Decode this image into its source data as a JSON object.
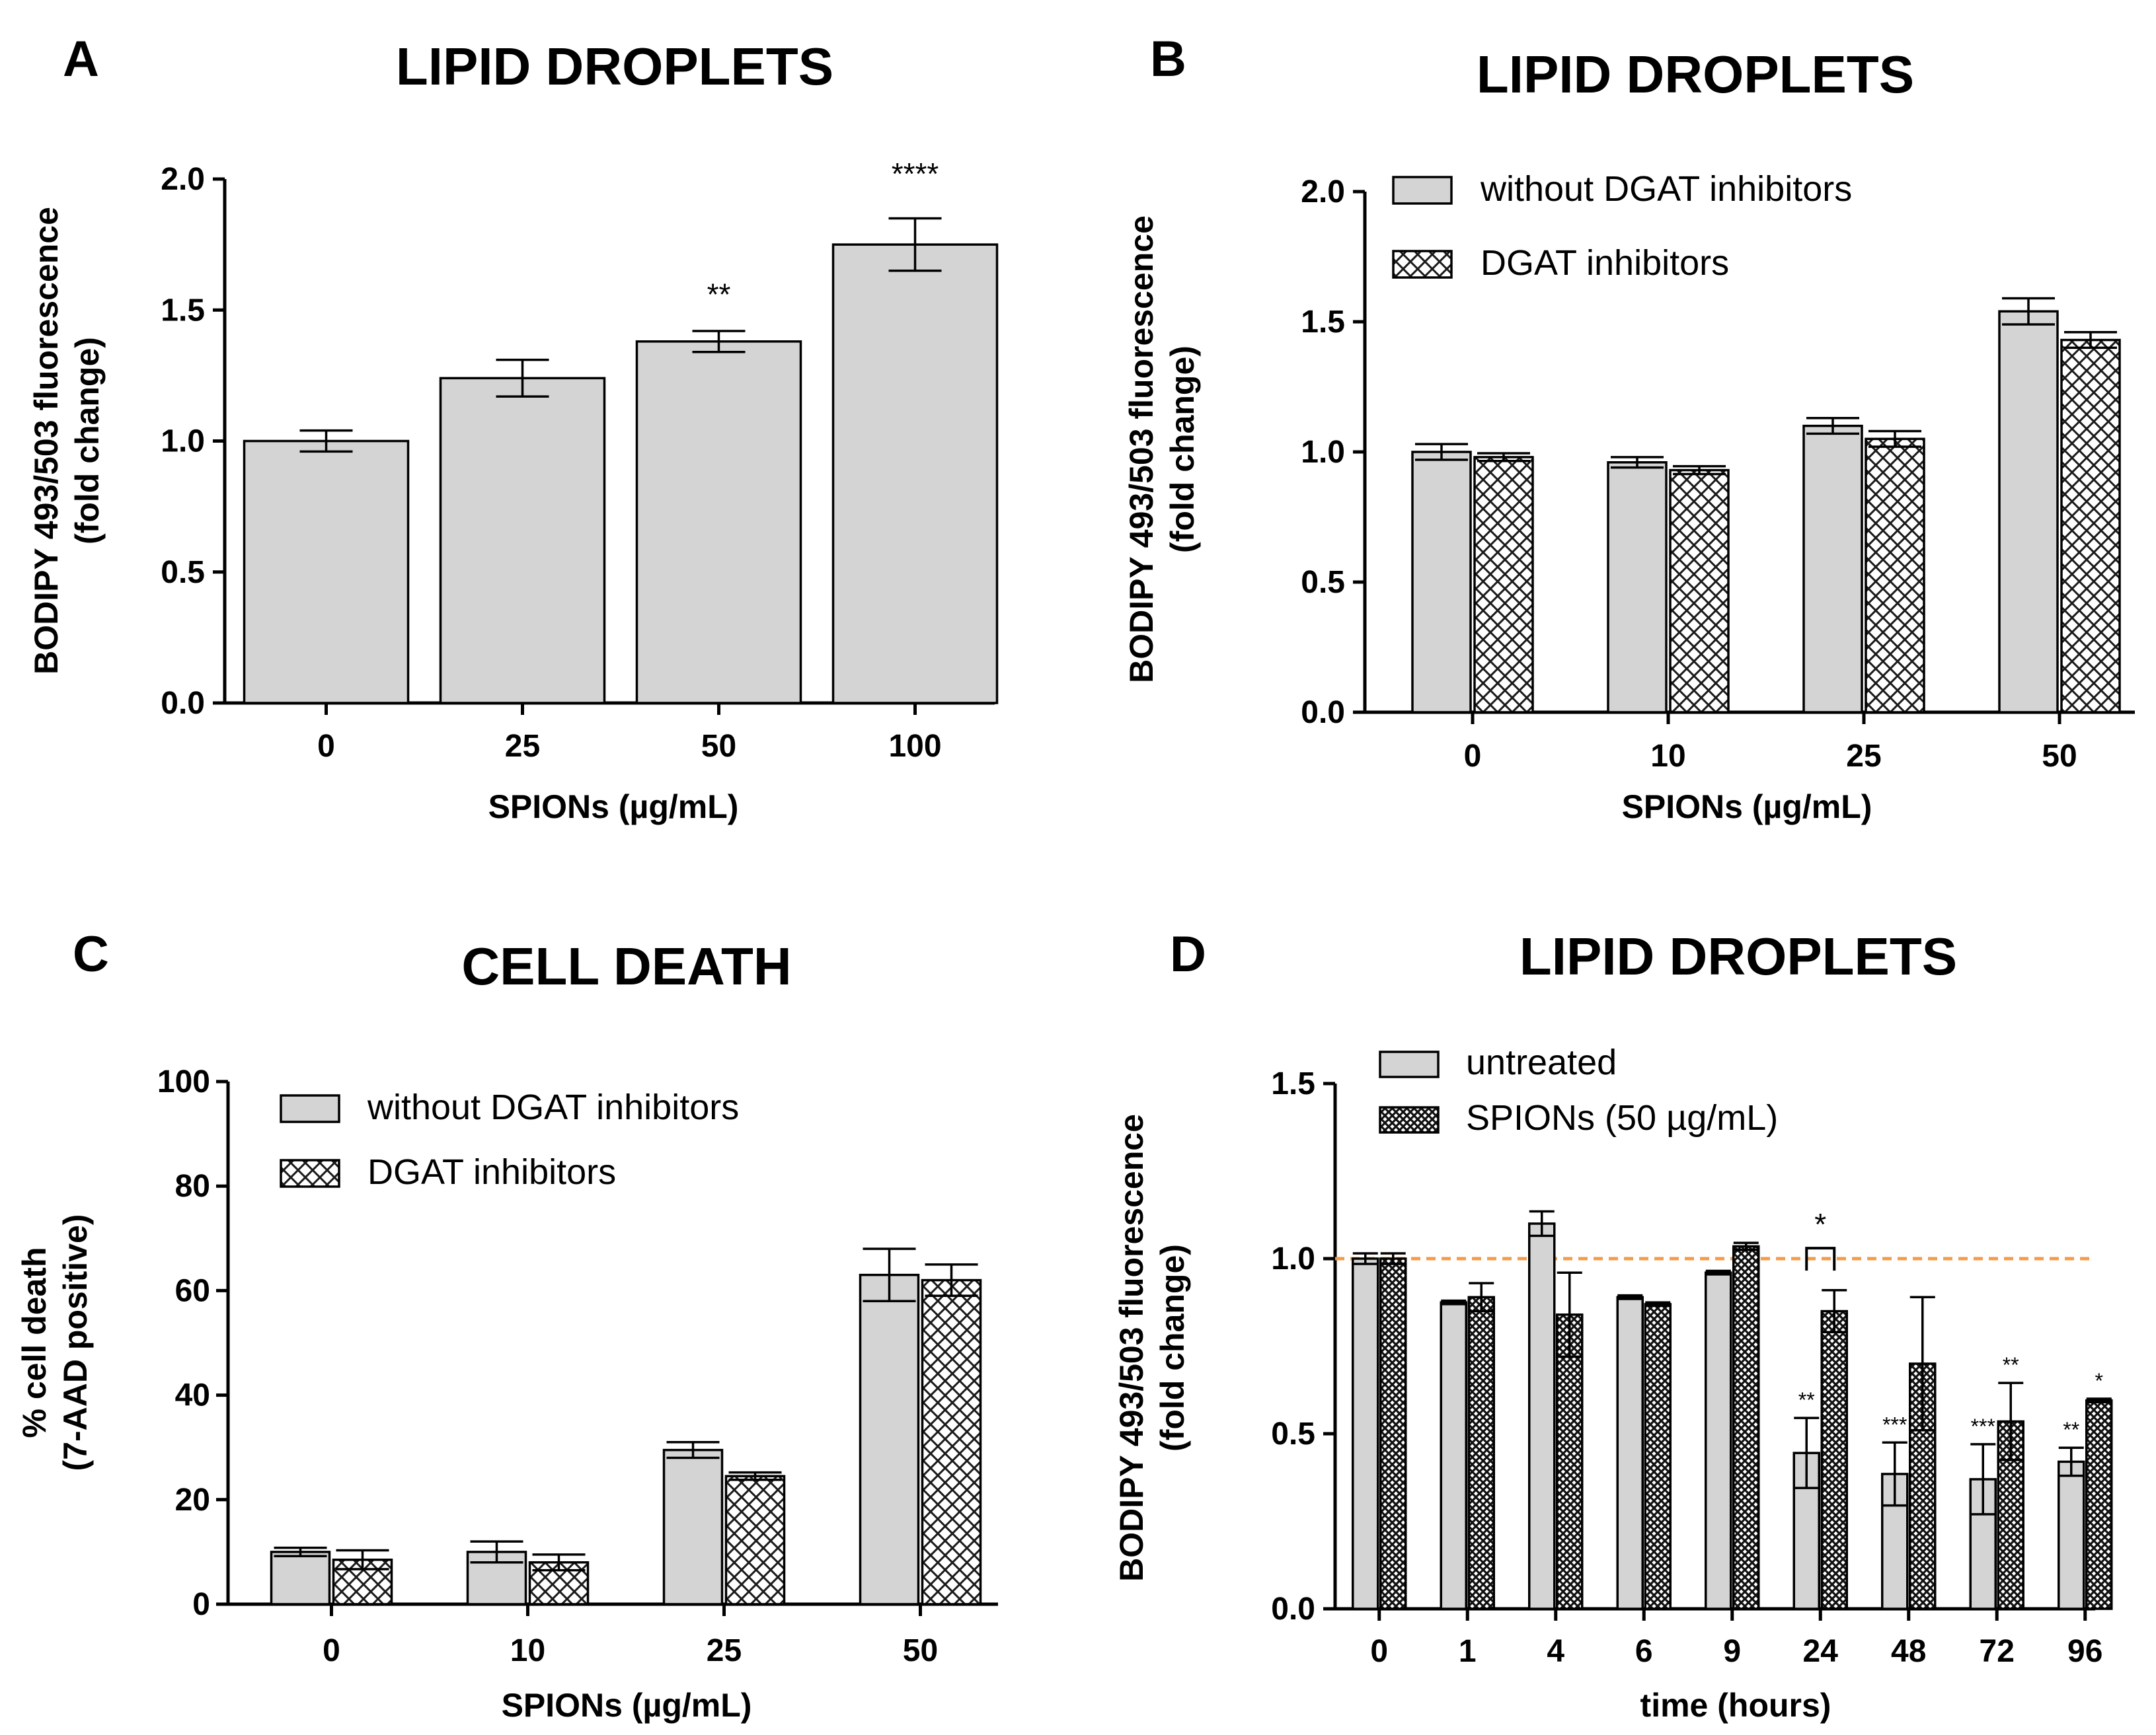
{
  "chart_data": [
    {
      "panel": "A",
      "type": "bar",
      "title": "LIPID DROPLETS",
      "xlabel": "SPIONs (µg/mL)",
      "ylabel": [
        "BODIPY 493/503 fluorescence",
        "(fold change)"
      ],
      "ylim": [
        0,
        2.0
      ],
      "yticks": [
        "0.0",
        "0.5",
        "1.0",
        "1.5",
        "2.0"
      ],
      "categories": [
        "0",
        "25",
        "50",
        "100"
      ],
      "series": [
        {
          "name": "",
          "pattern": "solid",
          "values": [
            1.0,
            1.24,
            1.38,
            1.75
          ],
          "errors": [
            0.04,
            0.07,
            0.04,
            0.1
          ]
        }
      ],
      "annotations": [
        {
          "category_index": 2,
          "text": "**",
          "y": 1.52
        },
        {
          "category_index": 3,
          "text": "****",
          "y": 1.98
        }
      ]
    },
    {
      "panel": "B",
      "type": "bar",
      "title": "LIPID DROPLETS",
      "xlabel": "SPIONs (µg/mL)",
      "ylabel": [
        "BODIPY 493/503 fluorescence",
        "(fold change)"
      ],
      "ylim": [
        0,
        2.0
      ],
      "yticks": [
        "0.0",
        "0.5",
        "1.0",
        "1.5",
        "2.0"
      ],
      "categories": [
        "0",
        "10",
        "25",
        "50"
      ],
      "legend_position": "top-left",
      "series": [
        {
          "name": "without DGAT inhibitors",
          "pattern": "solid",
          "values": [
            1.0,
            0.96,
            1.1,
            1.54
          ],
          "errors": [
            0.03,
            0.02,
            0.03,
            0.05
          ]
        },
        {
          "name": "DGAT inhibitors",
          "pattern": "crosshatch",
          "values": [
            0.98,
            0.93,
            1.05,
            1.43
          ],
          "errors": [
            0.015,
            0.015,
            0.03,
            0.03
          ]
        }
      ]
    },
    {
      "panel": "C",
      "type": "bar",
      "title": "CELL DEATH",
      "xlabel": "SPIONs (µg/mL)",
      "ylabel": [
        "% cell death",
        "(7-AAD positive)"
      ],
      "ylim": [
        0,
        100
      ],
      "yticks": [
        "0",
        "20",
        "40",
        "60",
        "80",
        "100"
      ],
      "categories": [
        "0",
        "10",
        "25",
        "50"
      ],
      "legend_position": "top-left",
      "series": [
        {
          "name": "without DGAT inhibitors",
          "pattern": "solid",
          "values": [
            10,
            10,
            29.5,
            63
          ],
          "errors": [
            0.8,
            2.0,
            1.5,
            5.0
          ]
        },
        {
          "name": "DGAT inhibitors",
          "pattern": "crosshatch",
          "values": [
            8.5,
            8,
            24.5,
            62
          ],
          "errors": [
            1.8,
            1.5,
            0.7,
            3.0
          ]
        }
      ]
    },
    {
      "panel": "D",
      "type": "bar",
      "title": "LIPID DROPLETS",
      "xlabel": "time (hours)",
      "ylabel": [
        "BODIPY 493/503 fluorescence",
        "(fold change)"
      ],
      "ylim": [
        0,
        1.5
      ],
      "yticks": [
        "0.0",
        "0.5",
        "1.0",
        "1.5"
      ],
      "categories": [
        "0",
        "1",
        "4",
        "6",
        "9",
        "24",
        "48",
        "72",
        "96"
      ],
      "legend_position": "top-left",
      "reference_line": {
        "y": 1.0,
        "color": "#f39b4b",
        "style": "dashed"
      },
      "series": [
        {
          "name": "untreated",
          "pattern": "solid",
          "values": [
            1.0,
            0.875,
            1.1,
            0.89,
            0.96,
            0.445,
            0.385,
            0.37,
            0.42
          ],
          "errors": [
            0.015,
            0.005,
            0.035,
            0.005,
            0.005,
            0.1,
            0.09,
            0.1,
            0.04
          ]
        },
        {
          "name": "SPIONs (50 µg/mL)",
          "pattern": "dense-crosshatch",
          "values": [
            1.0,
            0.89,
            0.84,
            0.87,
            1.035,
            0.85,
            0.7,
            0.535,
            0.595
          ],
          "errors": [
            0.015,
            0.04,
            0.12,
            0.005,
            0.01,
            0.06,
            0.19,
            0.11,
            0.005
          ]
        }
      ],
      "annotations": [
        {
          "category_index": 5,
          "series_index": 0,
          "text": "**"
        },
        {
          "category_index": 6,
          "series_index": 0,
          "text": "***"
        },
        {
          "category_index": 7,
          "series_index": 0,
          "text": "***"
        },
        {
          "category_index": 7,
          "series_index": 1,
          "text": "**"
        },
        {
          "category_index": 8,
          "series_index": 0,
          "text": "**"
        },
        {
          "category_index": 8,
          "series_index": 1,
          "text": "*"
        }
      ],
      "brackets": [
        {
          "category_index": 5,
          "text": "*",
          "y": 1.03
        }
      ]
    }
  ]
}
